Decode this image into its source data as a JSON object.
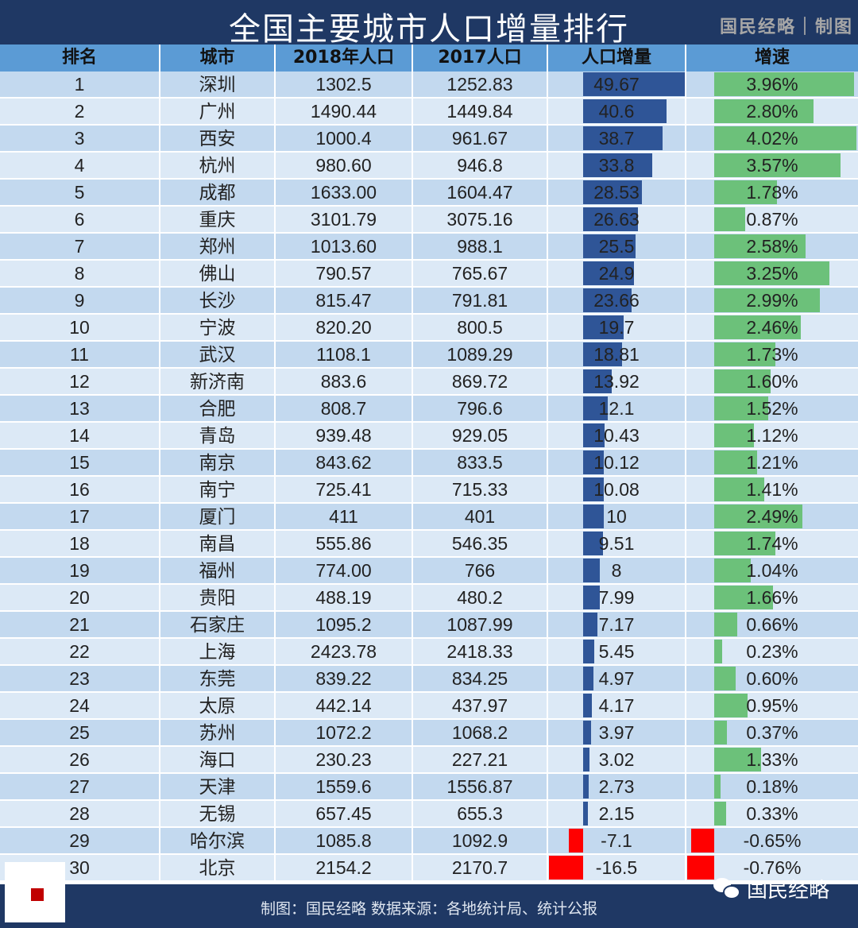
{
  "title": "全国主要城市人口增量排行",
  "credit": "国民经略｜制图",
  "footer": {
    "source": "制图：国民经略 数据来源：各地统计局、统计公报",
    "brand": "国民经略"
  },
  "colors": {
    "title_bg": "#1f3864",
    "header_bg": "#5b9bd5",
    "increase_bar": "#2f5597",
    "growth_bar": "#6cc17a",
    "negative_bar": "#ff0000"
  },
  "chart_data": {
    "type": "table",
    "title": "全国主要城市人口增量排行",
    "columns": [
      "排名",
      "城市",
      "2018年人口",
      "2017人口",
      "人口增量",
      "增速"
    ],
    "rows": [
      [
        "1",
        "深圳",
        "1302.5",
        "1252.83",
        "49.67",
        "3.96%"
      ],
      [
        "2",
        "广州",
        "1490.44",
        "1449.84",
        "40.6",
        "2.80%"
      ],
      [
        "3",
        "西安",
        "1000.4",
        "961.67",
        "38.7",
        "4.02%"
      ],
      [
        "4",
        "杭州",
        "980.60",
        "946.8",
        "33.8",
        "3.57%"
      ],
      [
        "5",
        "成都",
        "1633.00",
        "1604.47",
        "28.53",
        "1.78%"
      ],
      [
        "6",
        "重庆",
        "3101.79",
        "3075.16",
        "26.63",
        "0.87%"
      ],
      [
        "7",
        "郑州",
        "1013.60",
        "988.1",
        "25.5",
        "2.58%"
      ],
      [
        "8",
        "佛山",
        "790.57",
        "765.67",
        "24.9",
        "3.25%"
      ],
      [
        "9",
        "长沙",
        "815.47",
        "791.81",
        "23.66",
        "2.99%"
      ],
      [
        "10",
        "宁波",
        "820.20",
        "800.5",
        "19.7",
        "2.46%"
      ],
      [
        "11",
        "武汉",
        "1108.1",
        "1089.29",
        "18.81",
        "1.73%"
      ],
      [
        "12",
        "新济南",
        "883.6",
        "869.72",
        "13.92",
        "1.60%"
      ],
      [
        "13",
        "合肥",
        "808.7",
        "796.6",
        "12.1",
        "1.52%"
      ],
      [
        "14",
        "青岛",
        "939.48",
        "929.05",
        "10.43",
        "1.12%"
      ],
      [
        "15",
        "南京",
        "843.62",
        "833.5",
        "10.12",
        "1.21%"
      ],
      [
        "16",
        "南宁",
        "725.41",
        "715.33",
        "10.08",
        "1.41%"
      ],
      [
        "17",
        "厦门",
        "411",
        "401",
        "10",
        "2.49%"
      ],
      [
        "18",
        "南昌",
        "555.86",
        "546.35",
        "9.51",
        "1.74%"
      ],
      [
        "19",
        "福州",
        "774.00",
        "766",
        "8",
        "1.04%"
      ],
      [
        "20",
        "贵阳",
        "488.19",
        "480.2",
        "7.99",
        "1.66%"
      ],
      [
        "21",
        "石家庄",
        "1095.2",
        "1087.99",
        "7.17",
        "0.66%"
      ],
      [
        "22",
        "上海",
        "2423.78",
        "2418.33",
        "5.45",
        "0.23%"
      ],
      [
        "23",
        "东莞",
        "839.22",
        "834.25",
        "4.97",
        "0.60%"
      ],
      [
        "24",
        "太原",
        "442.14",
        "437.97",
        "4.17",
        "0.95%"
      ],
      [
        "25",
        "苏州",
        "1072.2",
        "1068.2",
        "3.97",
        "0.37%"
      ],
      [
        "26",
        "海口",
        "230.23",
        "227.21",
        "3.02",
        "1.33%"
      ],
      [
        "27",
        "天津",
        "1559.6",
        "1556.87",
        "2.73",
        "0.18%"
      ],
      [
        "28",
        "无锡",
        "657.45",
        "655.3",
        "2.15",
        "0.33%"
      ],
      [
        "29",
        "哈尔滨",
        "1085.8",
        "1092.9",
        "-7.1",
        "-0.65%"
      ],
      [
        "30",
        "北京",
        "2154.2",
        "2170.7",
        "-16.5",
        "-0.76%"
      ]
    ]
  }
}
